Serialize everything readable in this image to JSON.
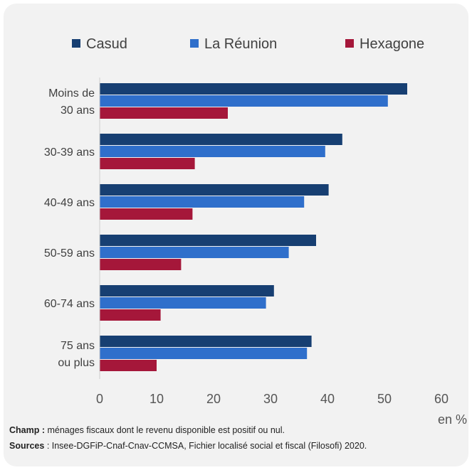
{
  "chart_data": {
    "type": "bar",
    "orientation": "horizontal",
    "categories": [
      [
        "Moins de",
        "30 ans"
      ],
      [
        "30-39 ans"
      ],
      [
        "40-49 ans"
      ],
      [
        "50-59 ans"
      ],
      [
        "60-74 ans"
      ],
      [
        "75 ans",
        "ou plus"
      ]
    ],
    "series": [
      {
        "name": "Casud",
        "color": "#173f72",
        "values": [
          54.0,
          42.6,
          40.2,
          38.0,
          30.6,
          37.2
        ]
      },
      {
        "name": "La Réunion",
        "color": "#2f6fcb",
        "values": [
          50.6,
          39.6,
          35.9,
          33.2,
          29.2,
          36.4
        ]
      },
      {
        "name": "Hexagone",
        "color": "#a5173a",
        "values": [
          22.5,
          16.7,
          16.3,
          14.3,
          10.7,
          10.0
        ]
      }
    ],
    "xlim": [
      0,
      60
    ],
    "xticks": [
      0,
      10,
      20,
      30,
      40,
      50,
      60
    ],
    "unit": "en %",
    "legend_position": "top",
    "grid": false
  },
  "footnotes": {
    "champ_label": "Champ :",
    "champ_text": " ménages fiscaux dont le revenu disponible est positif ou nul.",
    "sources_label": "Sources",
    "sources_text": " : Insee-DGFiP-Cnaf-Cnav-CCMSA, Fichier localisé social et fiscal (Filosofi) 2020."
  }
}
